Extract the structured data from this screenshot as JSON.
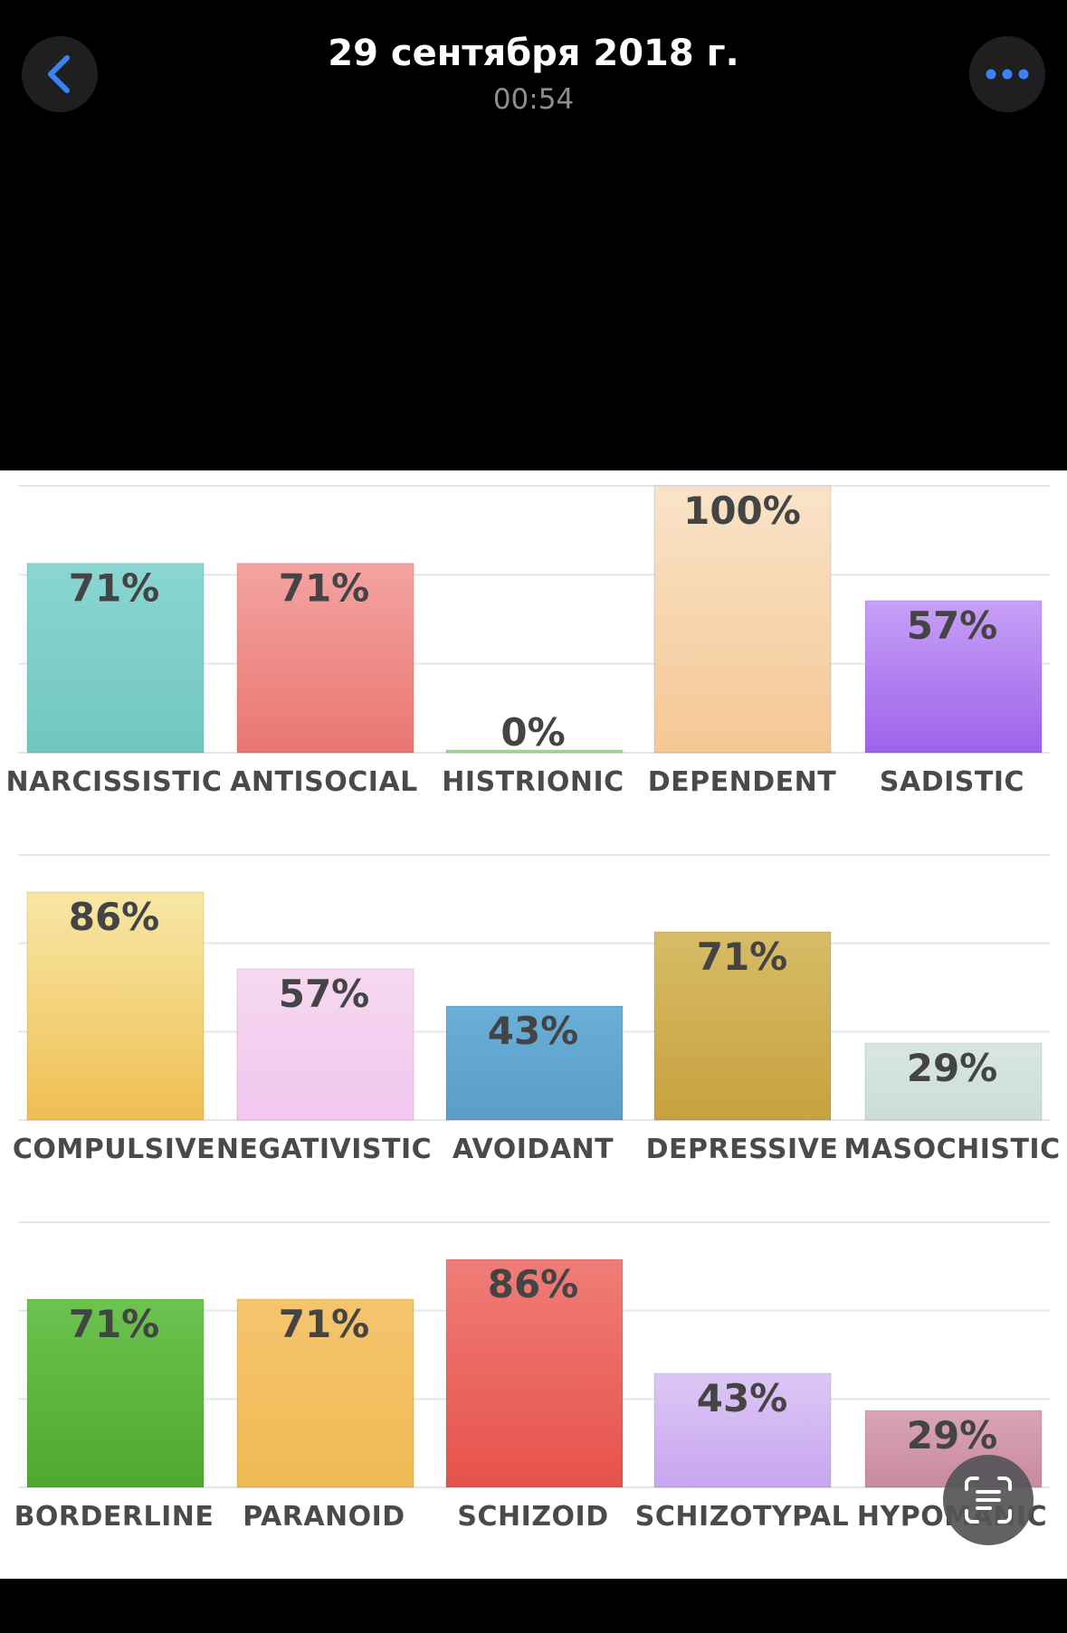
{
  "header": {
    "title": "29 сентября 2018 г.",
    "subtitle": "00:54",
    "back_icon": "chevron-left-icon",
    "more_icon": "ellipsis-icon",
    "accent": "#3b82f6"
  },
  "live_text": {
    "icon": "live-text-scan-icon"
  },
  "chart_data": [
    {
      "type": "bar",
      "categories": [
        "NARCISSISTIC",
        "ANTISOCIAL",
        "HISTRIONIC",
        "DEPENDENT",
        "SADISTIC"
      ],
      "values": [
        71,
        71,
        0,
        100,
        57
      ],
      "value_labels": [
        "71%",
        "71%",
        "0%",
        "100%",
        "57%"
      ],
      "colors": [
        [
          "#8ad6d3",
          "#72c6c0"
        ],
        [
          "#f4a3a1",
          "#e97670"
        ],
        [
          "#a6e690",
          "#8fdc7a"
        ],
        [
          "#f9e3c8",
          "#f5c794"
        ],
        [
          "#c7a0f7",
          "#9e62ea"
        ]
      ],
      "ylim": [
        0,
        100
      ],
      "grid": true
    },
    {
      "type": "bar",
      "categories": [
        "COMPULSIVE",
        "NEGATIVISTIC",
        "AVOIDANT",
        "DEPRESSIVE",
        "MASOCHISTIC"
      ],
      "values": [
        86,
        57,
        43,
        71,
        29
      ],
      "value_labels": [
        "86%",
        "57%",
        "43%",
        "71%",
        "29%"
      ],
      "colors": [
        [
          "#f7e7a6",
          "#f0be52"
        ],
        [
          "#f6d8f1",
          "#f1c7ee"
        ],
        [
          "#69afd8",
          "#5a9ec8"
        ],
        [
          "#d7bb66",
          "#c7a23e"
        ],
        [
          "#d8e7e0",
          "#cbded5"
        ]
      ],
      "ylim": [
        0,
        100
      ],
      "grid": true
    },
    {
      "type": "bar",
      "categories": [
        "BORDERLINE",
        "PARANOID",
        "SCHIZOID",
        "SCHIZOTYPAL",
        "HYPOMANIC"
      ],
      "values": [
        71,
        71,
        86,
        43,
        29
      ],
      "value_labels": [
        "71%",
        "71%",
        "86%",
        "43%",
        "29%"
      ],
      "colors": [
        [
          "#6cc34f",
          "#4ea832"
        ],
        [
          "#f5c56e",
          "#efb954"
        ],
        [
          "#f07c77",
          "#e6524b"
        ],
        [
          "#ddc6f5",
          "#c7a6f0"
        ],
        [
          "#d8a5b6",
          "#c98a9d"
        ]
      ],
      "ylim": [
        0,
        100
      ],
      "grid": true
    }
  ]
}
